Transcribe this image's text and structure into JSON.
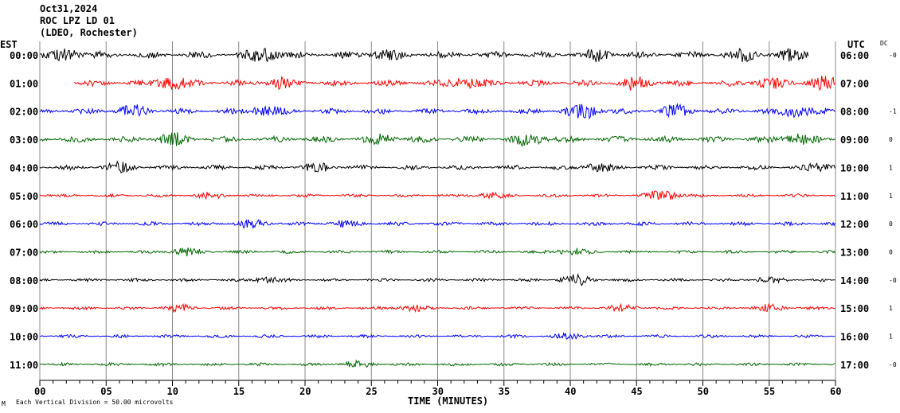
{
  "header": {
    "date": "Oct31,2024",
    "station": "ROC LPZ LD 01",
    "location": "(LDEO, Rochester)"
  },
  "chart_data": {
    "type": "line",
    "title": "Oct31,2024 ROC LPZ LD 01 (LDEO, Rochester)",
    "xlabel": "TIME (MINUTES)",
    "xlim": [
      0,
      60
    ],
    "xticks": [
      "00",
      "05",
      "10",
      "15",
      "20",
      "25",
      "30",
      "35",
      "40",
      "45",
      "50",
      "55",
      "60"
    ],
    "left_axis_label": "EST",
    "right_axis_label": "UTC",
    "dc_label": "DC",
    "grid": true,
    "scale_note": "Each Vertical Division =   50.00 microvolts",
    "corner_mark": "M",
    "rows": [
      {
        "est": "00:00",
        "utc": "06:00",
        "dc": "-0",
        "color": "#000000",
        "start": 0,
        "end": 58,
        "amp": 9,
        "bursts": [
          [
            2,
            14
          ],
          [
            17,
            16
          ],
          [
            26,
            9
          ],
          [
            42,
            10
          ],
          [
            53,
            12
          ],
          [
            57,
            10
          ]
        ]
      },
      {
        "est": "01:00",
        "utc": "07:00",
        "dc": "",
        "color": "#ff0000",
        "start": 2.6,
        "end": 60,
        "amp": 8,
        "bursts": [
          [
            10,
            15
          ],
          [
            18,
            10
          ],
          [
            32,
            12
          ],
          [
            45,
            14
          ],
          [
            55,
            11
          ],
          [
            59,
            12
          ]
        ]
      },
      {
        "est": "02:00",
        "utc": "08:00",
        "dc": "-1",
        "color": "#0000ff",
        "start": 0,
        "end": 60,
        "amp": 7,
        "bursts": [
          [
            7,
            12
          ],
          [
            17,
            14
          ],
          [
            41,
            17
          ],
          [
            48,
            12
          ],
          [
            57,
            14
          ]
        ]
      },
      {
        "est": "03:00",
        "utc": "09:00",
        "dc": "0",
        "color": "#006600",
        "start": 0,
        "end": 60,
        "amp": 8,
        "bursts": [
          [
            10,
            12
          ],
          [
            26,
            10
          ],
          [
            37,
            13
          ],
          [
            57,
            12
          ]
        ]
      },
      {
        "est": "04:00",
        "utc": "10:00",
        "dc": "1",
        "color": "#000000",
        "start": 0,
        "end": 60,
        "amp": 6,
        "bursts": [
          [
            6,
            10
          ],
          [
            21,
            8
          ],
          [
            42,
            9
          ],
          [
            59,
            8
          ]
        ]
      },
      {
        "est": "05:00",
        "utc": "11:00",
        "dc": "1",
        "color": "#ff0000",
        "start": 0,
        "end": 60,
        "amp": 4,
        "bursts": [
          [
            13,
            6
          ],
          [
            34,
            6
          ],
          [
            47,
            13
          ]
        ]
      },
      {
        "est": "06:00",
        "utc": "12:00",
        "dc": "0",
        "color": "#0000ff",
        "start": 0,
        "end": 60,
        "amp": 5,
        "bursts": [
          [
            16,
            8
          ],
          [
            23,
            7
          ]
        ]
      },
      {
        "est": "07:00",
        "utc": "13:00",
        "dc": "0",
        "color": "#006600",
        "start": 0,
        "end": 60,
        "amp": 4,
        "bursts": [
          [
            11,
            8
          ],
          [
            40,
            8
          ]
        ]
      },
      {
        "est": "08:00",
        "utc": "14:00",
        "dc": "-0",
        "color": "#000000",
        "start": 0,
        "end": 60,
        "amp": 4,
        "bursts": [
          [
            17,
            6
          ],
          [
            40.5,
            12
          ],
          [
            55,
            6
          ]
        ]
      },
      {
        "est": "09:00",
        "utc": "15:00",
        "dc": "1",
        "color": "#ff0000",
        "start": 0,
        "end": 60,
        "amp": 4,
        "bursts": [
          [
            10.5,
            7
          ],
          [
            28,
            6
          ],
          [
            44,
            7
          ],
          [
            55,
            7
          ]
        ]
      },
      {
        "est": "10:00",
        "utc": "16:00",
        "dc": "1",
        "color": "#0000ff",
        "start": 0,
        "end": 60,
        "amp": 4,
        "bursts": [
          [
            40,
            6
          ]
        ]
      },
      {
        "est": "11:00",
        "utc": "17:00",
        "dc": "-0",
        "color": "#006600",
        "start": 0,
        "end": 60,
        "amp": 4,
        "bursts": [
          [
            24,
            6
          ]
        ]
      }
    ]
  }
}
